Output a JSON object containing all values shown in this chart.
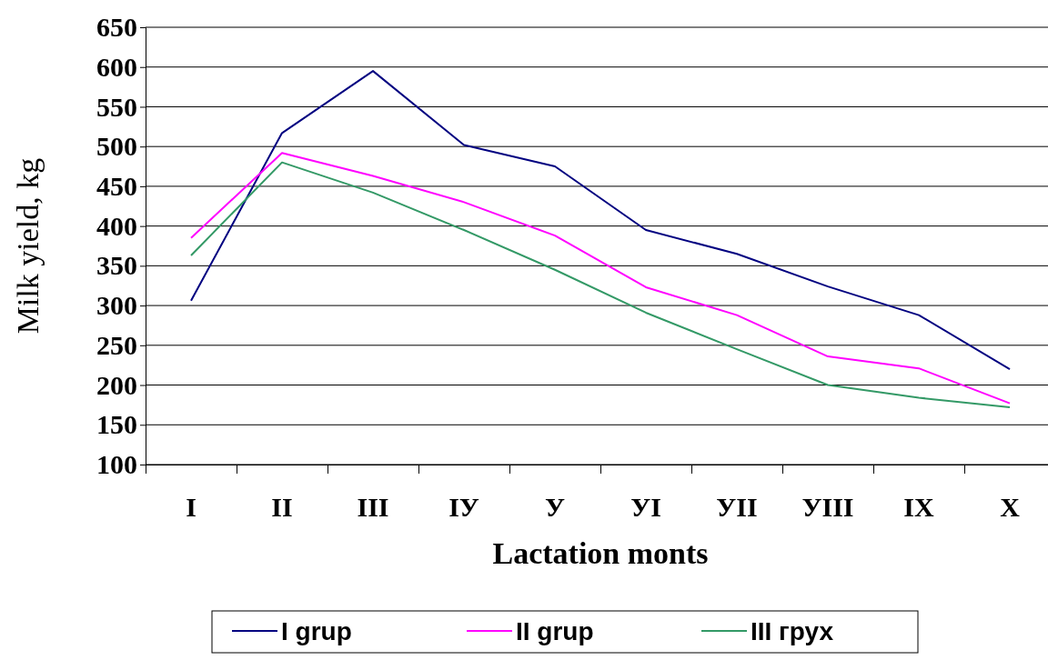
{
  "chart_data": {
    "type": "line",
    "xlabel": "Lactation monts",
    "ylabel": "Milk yield, kg",
    "categories": [
      "I",
      "II",
      "III",
      "IУ",
      "У",
      "УI",
      "УII",
      "УIII",
      "IX",
      "X"
    ],
    "ylim": [
      100,
      650
    ],
    "yticks": [
      100,
      150,
      200,
      250,
      300,
      350,
      400,
      450,
      500,
      550,
      600,
      650
    ],
    "grid": "y",
    "legend": "bottom",
    "marker": "none",
    "series": [
      {
        "name": "I grup",
        "color": "#000080",
        "values": [
          306,
          517,
          595,
          502,
          475,
          395,
          365,
          324,
          288,
          220
        ]
      },
      {
        "name": "II grup",
        "color": "#ff00ff",
        "values": [
          385,
          492,
          463,
          430,
          388,
          323,
          288,
          236,
          221,
          177
        ]
      },
      {
        "name": "III грух",
        "color": "#339966",
        "values": [
          363,
          480,
          442,
          395,
          345,
          291,
          245,
          200,
          184,
          172
        ]
      }
    ]
  }
}
